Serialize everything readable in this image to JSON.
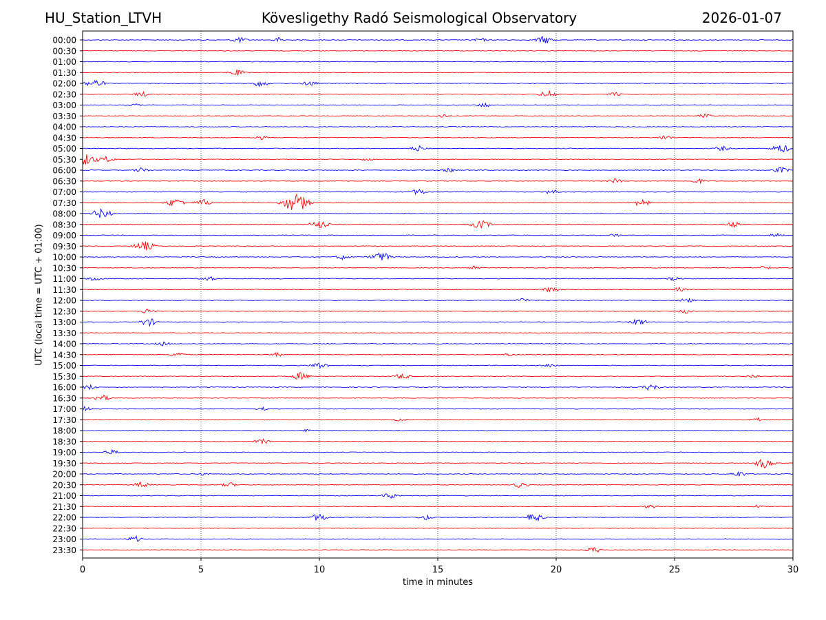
{
  "header": {
    "station": "HU_Station_LTVH",
    "observatory": "Kövesligethy Radó Seismological Observatory",
    "date": "2026-01-07"
  },
  "chart_data": {
    "type": "line",
    "title": "Kövesligethy Radó Seismological Observatory",
    "xlabel": "time in minutes",
    "ylabel": "UTC (local time = UTC + 01:00)",
    "xlim": [
      0,
      30
    ],
    "xticks": [
      0,
      5,
      10,
      15,
      20,
      25,
      30
    ],
    "grid": "vertical dotted lines at each x tick",
    "colors": {
      "even_rows": "#0000ff",
      "odd_rows": "#ff0000"
    },
    "series": [
      {
        "name": "00:00",
        "bursts": [
          [
            6.6,
            0.6
          ],
          [
            8.3,
            0.5
          ],
          [
            16.8,
            0.4
          ],
          [
            19.5,
            0.8
          ]
        ]
      },
      {
        "name": "00:30",
        "bursts": []
      },
      {
        "name": "01:00",
        "bursts": []
      },
      {
        "name": "01:30",
        "bursts": [
          [
            6.5,
            0.6
          ]
        ]
      },
      {
        "name": "02:00",
        "bursts": [
          [
            0.5,
            0.9
          ],
          [
            7.5,
            0.7
          ],
          [
            9.6,
            0.5
          ]
        ]
      },
      {
        "name": "02:30",
        "bursts": [
          [
            2.5,
            0.5
          ],
          [
            19.7,
            0.8
          ],
          [
            22.5,
            0.4
          ]
        ]
      },
      {
        "name": "03:00",
        "bursts": [
          [
            2.2,
            0.3
          ],
          [
            17.0,
            0.5
          ]
        ]
      },
      {
        "name": "03:30",
        "bursts": [
          [
            15.2,
            0.4
          ],
          [
            26.3,
            0.4
          ]
        ]
      },
      {
        "name": "04:00",
        "bursts": []
      },
      {
        "name": "04:30",
        "bursts": [
          [
            7.5,
            0.4
          ],
          [
            24.6,
            0.5
          ]
        ]
      },
      {
        "name": "05:00",
        "bursts": [
          [
            14.2,
            0.6
          ],
          [
            27.0,
            0.5
          ],
          [
            29.5,
            0.9
          ]
        ]
      },
      {
        "name": "05:30",
        "bursts": [
          [
            0.1,
            1.2
          ],
          [
            1.0,
            0.6
          ],
          [
            12.0,
            0.3
          ]
        ]
      },
      {
        "name": "06:00",
        "bursts": [
          [
            2.5,
            0.5
          ],
          [
            15.5,
            0.4
          ],
          [
            29.5,
            0.6
          ]
        ]
      },
      {
        "name": "06:30",
        "bursts": [
          [
            22.5,
            0.5
          ],
          [
            26.0,
            0.5
          ]
        ]
      },
      {
        "name": "07:00",
        "bursts": [
          [
            14.2,
            0.6
          ],
          [
            19.8,
            0.5
          ]
        ]
      },
      {
        "name": "07:30",
        "bursts": [
          [
            3.9,
            0.9
          ],
          [
            5.1,
            0.7
          ],
          [
            8.8,
            1.2
          ],
          [
            9.2,
            1.2
          ],
          [
            23.6,
            0.8
          ]
        ]
      },
      {
        "name": "08:00",
        "bursts": [
          [
            0.8,
            1.0
          ]
        ]
      },
      {
        "name": "08:30",
        "bursts": [
          [
            10.0,
            0.8
          ],
          [
            16.8,
            0.9
          ],
          [
            27.5,
            0.6
          ]
        ]
      },
      {
        "name": "09:00",
        "bursts": [
          [
            22.5,
            0.3
          ],
          [
            29.3,
            0.4
          ]
        ]
      },
      {
        "name": "09:30",
        "bursts": [
          [
            2.6,
            1.0
          ]
        ]
      },
      {
        "name": "10:00",
        "bursts": [
          [
            12.6,
            1.0
          ],
          [
            11.0,
            0.5
          ]
        ]
      },
      {
        "name": "10:30",
        "bursts": [
          [
            16.5,
            0.4
          ],
          [
            28.8,
            0.4
          ]
        ]
      },
      {
        "name": "11:00",
        "bursts": [
          [
            0.5,
            0.5
          ],
          [
            5.3,
            0.5
          ],
          [
            25.0,
            0.4
          ]
        ]
      },
      {
        "name": "11:30",
        "bursts": [
          [
            19.8,
            0.6
          ],
          [
            25.2,
            0.4
          ]
        ]
      },
      {
        "name": "12:00",
        "bursts": [
          [
            18.6,
            0.5
          ],
          [
            25.5,
            0.5
          ]
        ]
      },
      {
        "name": "12:30",
        "bursts": [
          [
            2.8,
            0.6
          ],
          [
            25.5,
            0.4
          ]
        ]
      },
      {
        "name": "13:00",
        "bursts": [
          [
            2.8,
            0.8
          ],
          [
            23.5,
            0.7
          ]
        ]
      },
      {
        "name": "13:30",
        "bursts": []
      },
      {
        "name": "14:00",
        "bursts": [
          [
            3.4,
            0.4
          ]
        ]
      },
      {
        "name": "14:30",
        "bursts": [
          [
            4.0,
            0.5
          ],
          [
            8.2,
            0.4
          ],
          [
            18.0,
            0.3
          ]
        ]
      },
      {
        "name": "15:00",
        "bursts": [
          [
            10.0,
            0.7
          ],
          [
            19.8,
            0.4
          ]
        ]
      },
      {
        "name": "15:30",
        "bursts": [
          [
            9.2,
            0.8
          ],
          [
            13.5,
            0.6
          ],
          [
            28.3,
            0.4
          ]
        ]
      },
      {
        "name": "16:00",
        "bursts": [
          [
            0.3,
            0.5
          ],
          [
            24.0,
            0.7
          ]
        ]
      },
      {
        "name": "16:30",
        "bursts": [
          [
            0.8,
            0.7
          ]
        ]
      },
      {
        "name": "17:00",
        "bursts": [
          [
            0.1,
            0.5
          ],
          [
            7.6,
            0.3
          ]
        ]
      },
      {
        "name": "17:30",
        "bursts": [
          [
            13.4,
            0.3
          ],
          [
            28.5,
            0.4
          ]
        ]
      },
      {
        "name": "18:00",
        "bursts": [
          [
            9.5,
            0.3
          ]
        ]
      },
      {
        "name": "18:30",
        "bursts": [
          [
            7.6,
            0.5
          ]
        ]
      },
      {
        "name": "19:00",
        "bursts": [
          [
            1.2,
            0.5
          ]
        ]
      },
      {
        "name": "19:30",
        "bursts": [
          [
            28.8,
            1.0
          ]
        ]
      },
      {
        "name": "20:00",
        "bursts": [
          [
            27.7,
            0.6
          ],
          [
            5.1,
            0.3
          ]
        ]
      },
      {
        "name": "20:30",
        "bursts": [
          [
            2.5,
            0.6
          ],
          [
            6.2,
            0.5
          ],
          [
            18.5,
            0.6
          ]
        ]
      },
      {
        "name": "21:00",
        "bursts": [
          [
            13.0,
            0.6
          ]
        ]
      },
      {
        "name": "21:30",
        "bursts": [
          [
            24.0,
            0.4
          ],
          [
            28.5,
            0.3
          ]
        ]
      },
      {
        "name": "22:00",
        "bursts": [
          [
            10.0,
            0.8
          ],
          [
            14.5,
            0.5
          ],
          [
            19.1,
            0.8
          ]
        ]
      },
      {
        "name": "22:30",
        "bursts": []
      },
      {
        "name": "23:00",
        "bursts": [
          [
            2.2,
            0.6
          ]
        ]
      },
      {
        "name": "23:30",
        "bursts": [
          [
            21.6,
            0.6
          ]
        ]
      }
    ]
  }
}
